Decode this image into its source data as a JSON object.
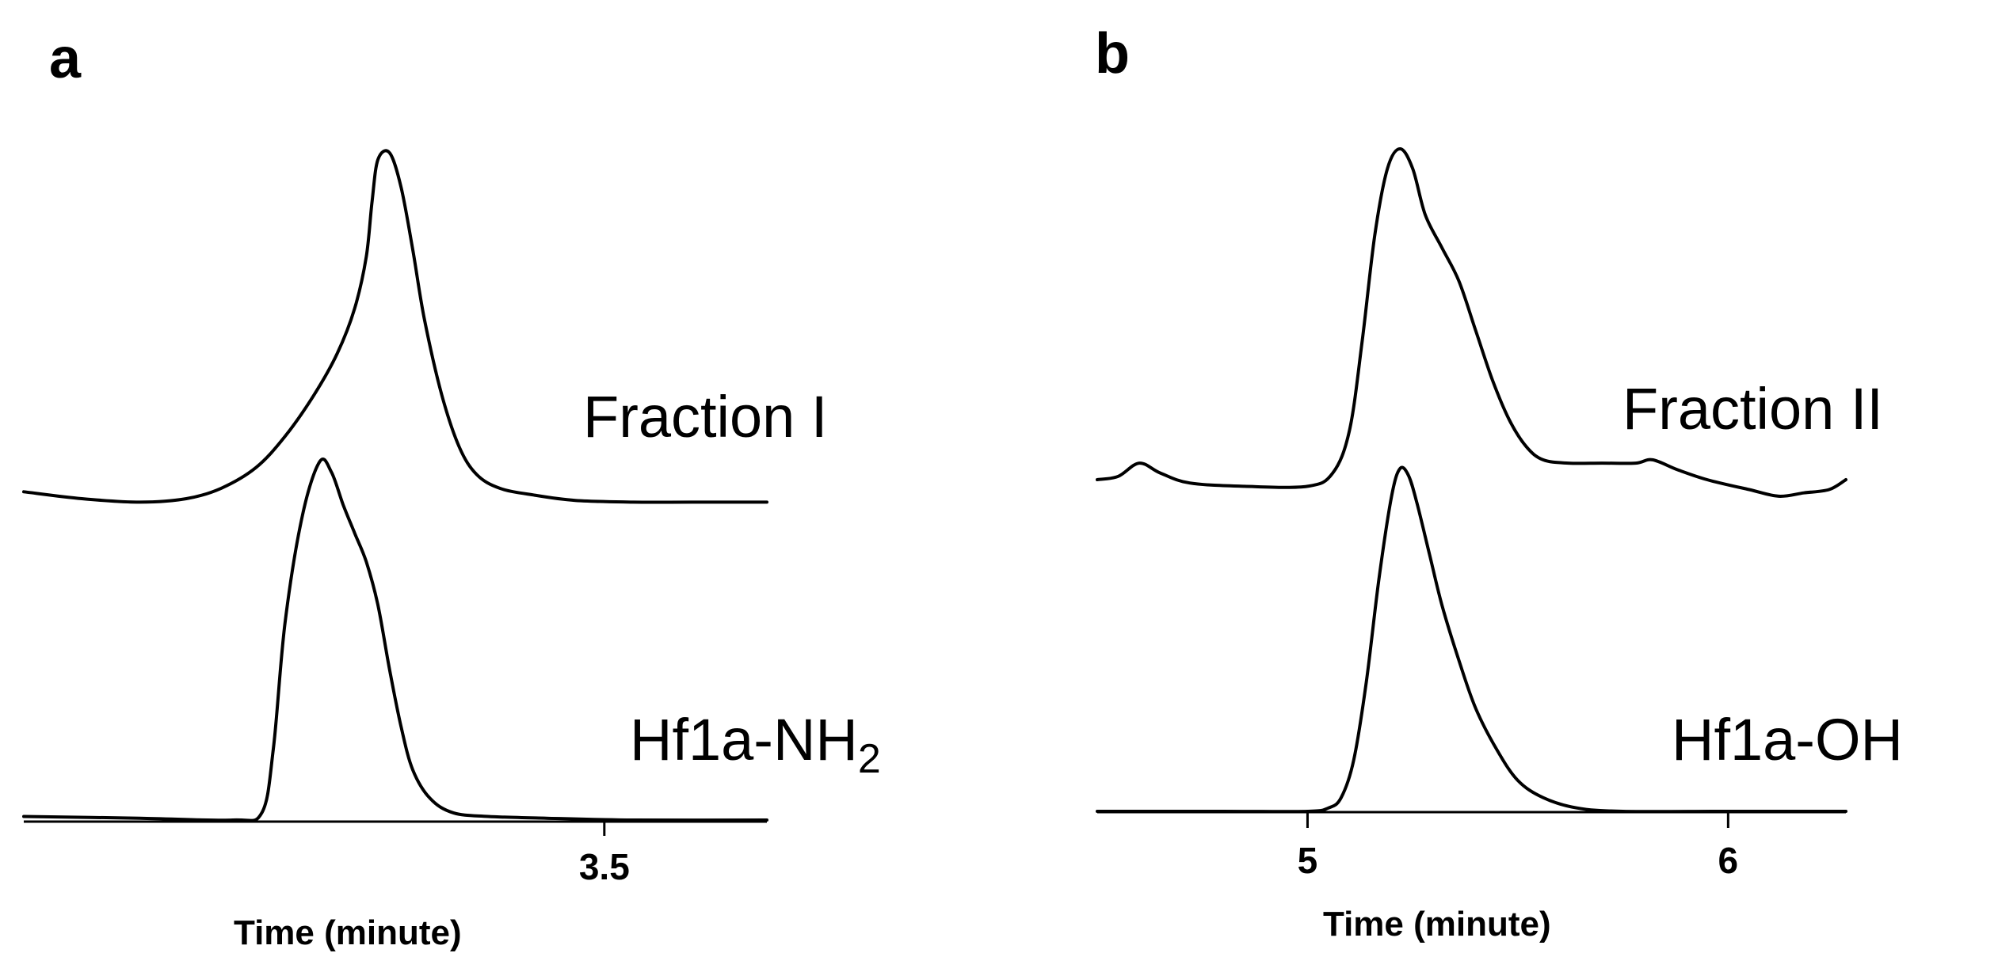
{
  "chart_data": [
    {
      "type": "line",
      "panel": "a",
      "xlabel": "Time (minute)",
      "x_ticks": [
        3.5
      ],
      "xlim": [
        2.5,
        3.78
      ],
      "series": [
        {
          "name": "Fraction I",
          "x": [
            2.5,
            2.6,
            2.7,
            2.78,
            2.84,
            2.9,
            2.95,
            3.0,
            3.04,
            3.07,
            3.09,
            3.1,
            3.11,
            3.13,
            3.15,
            3.17,
            3.19,
            3.22,
            3.25,
            3.28,
            3.32,
            3.38,
            3.45,
            3.55,
            3.65,
            3.78
          ],
          "y": [
            0.02,
            0.0,
            -0.01,
            0.0,
            0.03,
            0.09,
            0.18,
            0.3,
            0.42,
            0.55,
            0.7,
            0.86,
            0.98,
            1.0,
            0.9,
            0.72,
            0.52,
            0.3,
            0.15,
            0.07,
            0.03,
            0.01,
            -0.005,
            -0.01,
            -0.01,
            -0.01
          ]
        },
        {
          "name": "Hf1a-NH2",
          "x": [
            2.5,
            2.7,
            2.86,
            2.91,
            2.93,
            2.95,
            2.98,
            3.01,
            3.03,
            3.05,
            3.07,
            3.09,
            3.11,
            3.13,
            3.15,
            3.17,
            3.2,
            3.24,
            3.3,
            3.4,
            3.55,
            3.78
          ],
          "y": [
            0.01,
            0.005,
            0.0,
            0.02,
            0.2,
            0.55,
            0.85,
            1.0,
            0.97,
            0.88,
            0.8,
            0.72,
            0.6,
            0.42,
            0.26,
            0.14,
            0.06,
            0.02,
            0.01,
            0.005,
            0.0,
            0.0
          ]
        }
      ]
    },
    {
      "type": "line",
      "panel": "b",
      "xlabel": "Time (minute)",
      "x_ticks": [
        5,
        6
      ],
      "xlim": [
        4.5,
        6.28
      ],
      "series": [
        {
          "name": "Fraction II",
          "x": [
            4.5,
            4.55,
            4.6,
            4.65,
            4.72,
            4.85,
            5.0,
            5.06,
            5.1,
            5.13,
            5.16,
            5.19,
            5.22,
            5.25,
            5.28,
            5.32,
            5.36,
            5.4,
            5.44,
            5.48,
            5.52,
            5.56,
            5.62,
            5.7,
            5.78,
            5.82,
            5.88,
            5.95,
            6.05,
            6.12,
            6.18,
            6.24,
            6.28
          ],
          "y": [
            0.0,
            0.01,
            0.05,
            0.02,
            -0.01,
            -0.02,
            -0.02,
            0.02,
            0.15,
            0.42,
            0.74,
            0.94,
            1.0,
            0.94,
            0.8,
            0.7,
            0.6,
            0.45,
            0.3,
            0.18,
            0.1,
            0.06,
            0.05,
            0.05,
            0.05,
            0.06,
            0.03,
            0.0,
            -0.03,
            -0.05,
            -0.04,
            -0.03,
            0.0
          ]
        },
        {
          "name": "Hf1a-OH",
          "x": [
            4.5,
            4.8,
            5.0,
            5.05,
            5.08,
            5.11,
            5.14,
            5.17,
            5.2,
            5.22,
            5.24,
            5.26,
            5.29,
            5.32,
            5.36,
            5.4,
            5.45,
            5.5,
            5.56,
            5.64,
            5.75,
            6.0,
            6.28
          ],
          "y": [
            0.0,
            0.0,
            0.0,
            0.01,
            0.04,
            0.15,
            0.38,
            0.68,
            0.92,
            1.0,
            0.98,
            0.9,
            0.75,
            0.6,
            0.44,
            0.3,
            0.18,
            0.09,
            0.04,
            0.01,
            0.0,
            0.0,
            0.0
          ]
        }
      ]
    }
  ],
  "panels": [
    {
      "letter": "a",
      "xlabel": "Time (minute)",
      "tick_labels": [
        "3.5"
      ],
      "labels": [
        {
          "main": "Fraction I",
          "sub": ""
        },
        {
          "main": "Hf1a-NH",
          "sub": "2"
        }
      ]
    },
    {
      "letter": "b",
      "xlabel": "Time (minute)",
      "tick_labels": [
        "5",
        "6"
      ],
      "labels": [
        {
          "main": "Fraction II",
          "sub": ""
        },
        {
          "main": "Hf1a-OH",
          "sub": ""
        }
      ]
    }
  ]
}
